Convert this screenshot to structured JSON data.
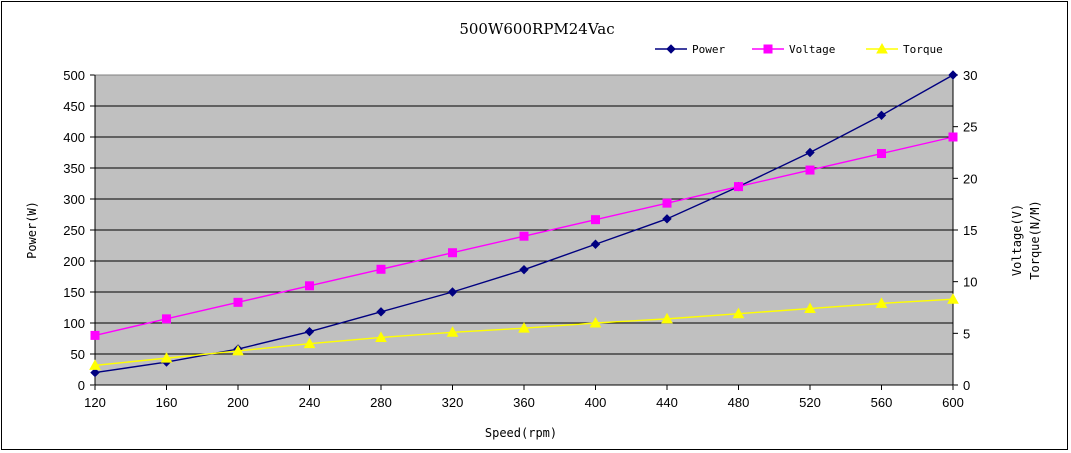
{
  "chart_data": {
    "type": "line",
    "title": "500W600RPM24Vac",
    "xlabel": "Speed(rpm)",
    "ylabel": "Power(W)",
    "y2label": [
      "Voltage(V)",
      "Torque(N/M)"
    ],
    "x": [
      120,
      160,
      200,
      240,
      280,
      320,
      360,
      400,
      440,
      480,
      520,
      560,
      600
    ],
    "xlim": [
      120,
      600
    ],
    "ylim": [
      0,
      500
    ],
    "y2lim": [
      0,
      30
    ],
    "x_ticks": [
      "120",
      "160",
      "200",
      "240",
      "280",
      "320",
      "360",
      "400",
      "440",
      "480",
      "520",
      "560",
      "600"
    ],
    "y_ticks": [
      "0",
      "50",
      "100",
      "150",
      "200",
      "250",
      "300",
      "350",
      "400",
      "450",
      "500"
    ],
    "y2_ticks": [
      "0",
      "5",
      "10",
      "15",
      "20",
      "25",
      "30"
    ],
    "grid": "horizontal",
    "plot_background": "#c0c0c0",
    "legend_position": "top-right",
    "series": [
      {
        "name": "Power",
        "axis": "left",
        "color": "#000080",
        "marker": "diamond",
        "values": [
          20,
          37,
          58,
          86,
          118,
          150,
          186,
          227,
          268,
          320,
          375,
          435,
          500
        ]
      },
      {
        "name": "Voltage",
        "axis": "right",
        "color": "#ff00ff",
        "marker": "square",
        "values": [
          4.8,
          6.4,
          8.0,
          9.6,
          11.2,
          12.8,
          14.4,
          16.0,
          17.6,
          19.2,
          20.8,
          22.4,
          24.0
        ]
      },
      {
        "name": "Torque",
        "axis": "right",
        "color": "#ffff00",
        "marker": "triangle",
        "values": [
          1.9,
          2.6,
          3.3,
          4.0,
          4.6,
          5.1,
          5.5,
          6.0,
          6.4,
          6.9,
          7.4,
          7.9,
          8.3
        ]
      }
    ]
  }
}
